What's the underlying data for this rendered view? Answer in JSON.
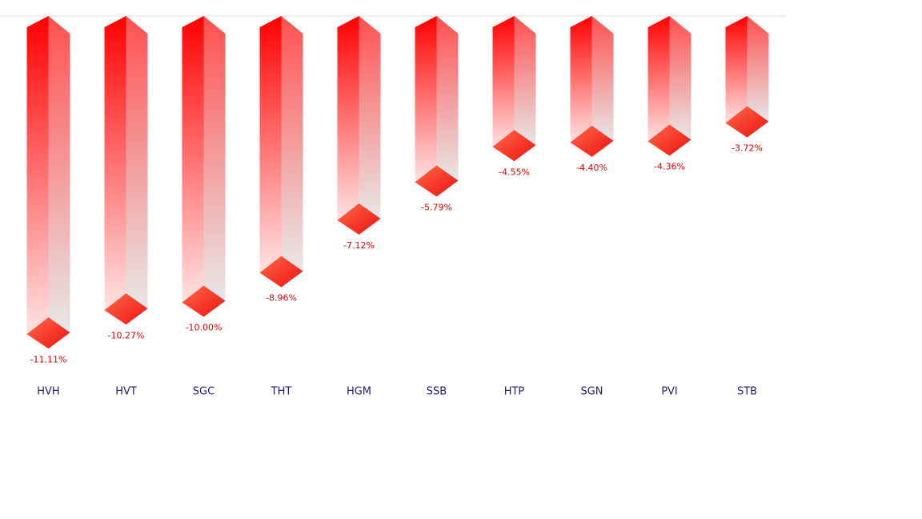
{
  "chart_data": {
    "type": "bar3d",
    "categories": [
      "HVH",
      "HVT",
      "SGC",
      "THT",
      "HGM",
      "SSB",
      "HTP",
      "SGN",
      "PVI",
      "STB"
    ],
    "values": [
      -11.11,
      -10.27,
      -10.0,
      -8.96,
      -7.12,
      -5.79,
      -4.55,
      -4.4,
      -4.36,
      -3.72
    ],
    "value_labels": [
      "-11.11%",
      "-10.27%",
      "-10.00%",
      "-8.96%",
      "-7.12%",
      "-5.79%",
      "-4.55%",
      "-4.40%",
      "-4.36%",
      "-3.72%"
    ],
    "color": "#ff0000",
    "ylim": [
      -12,
      0
    ]
  }
}
